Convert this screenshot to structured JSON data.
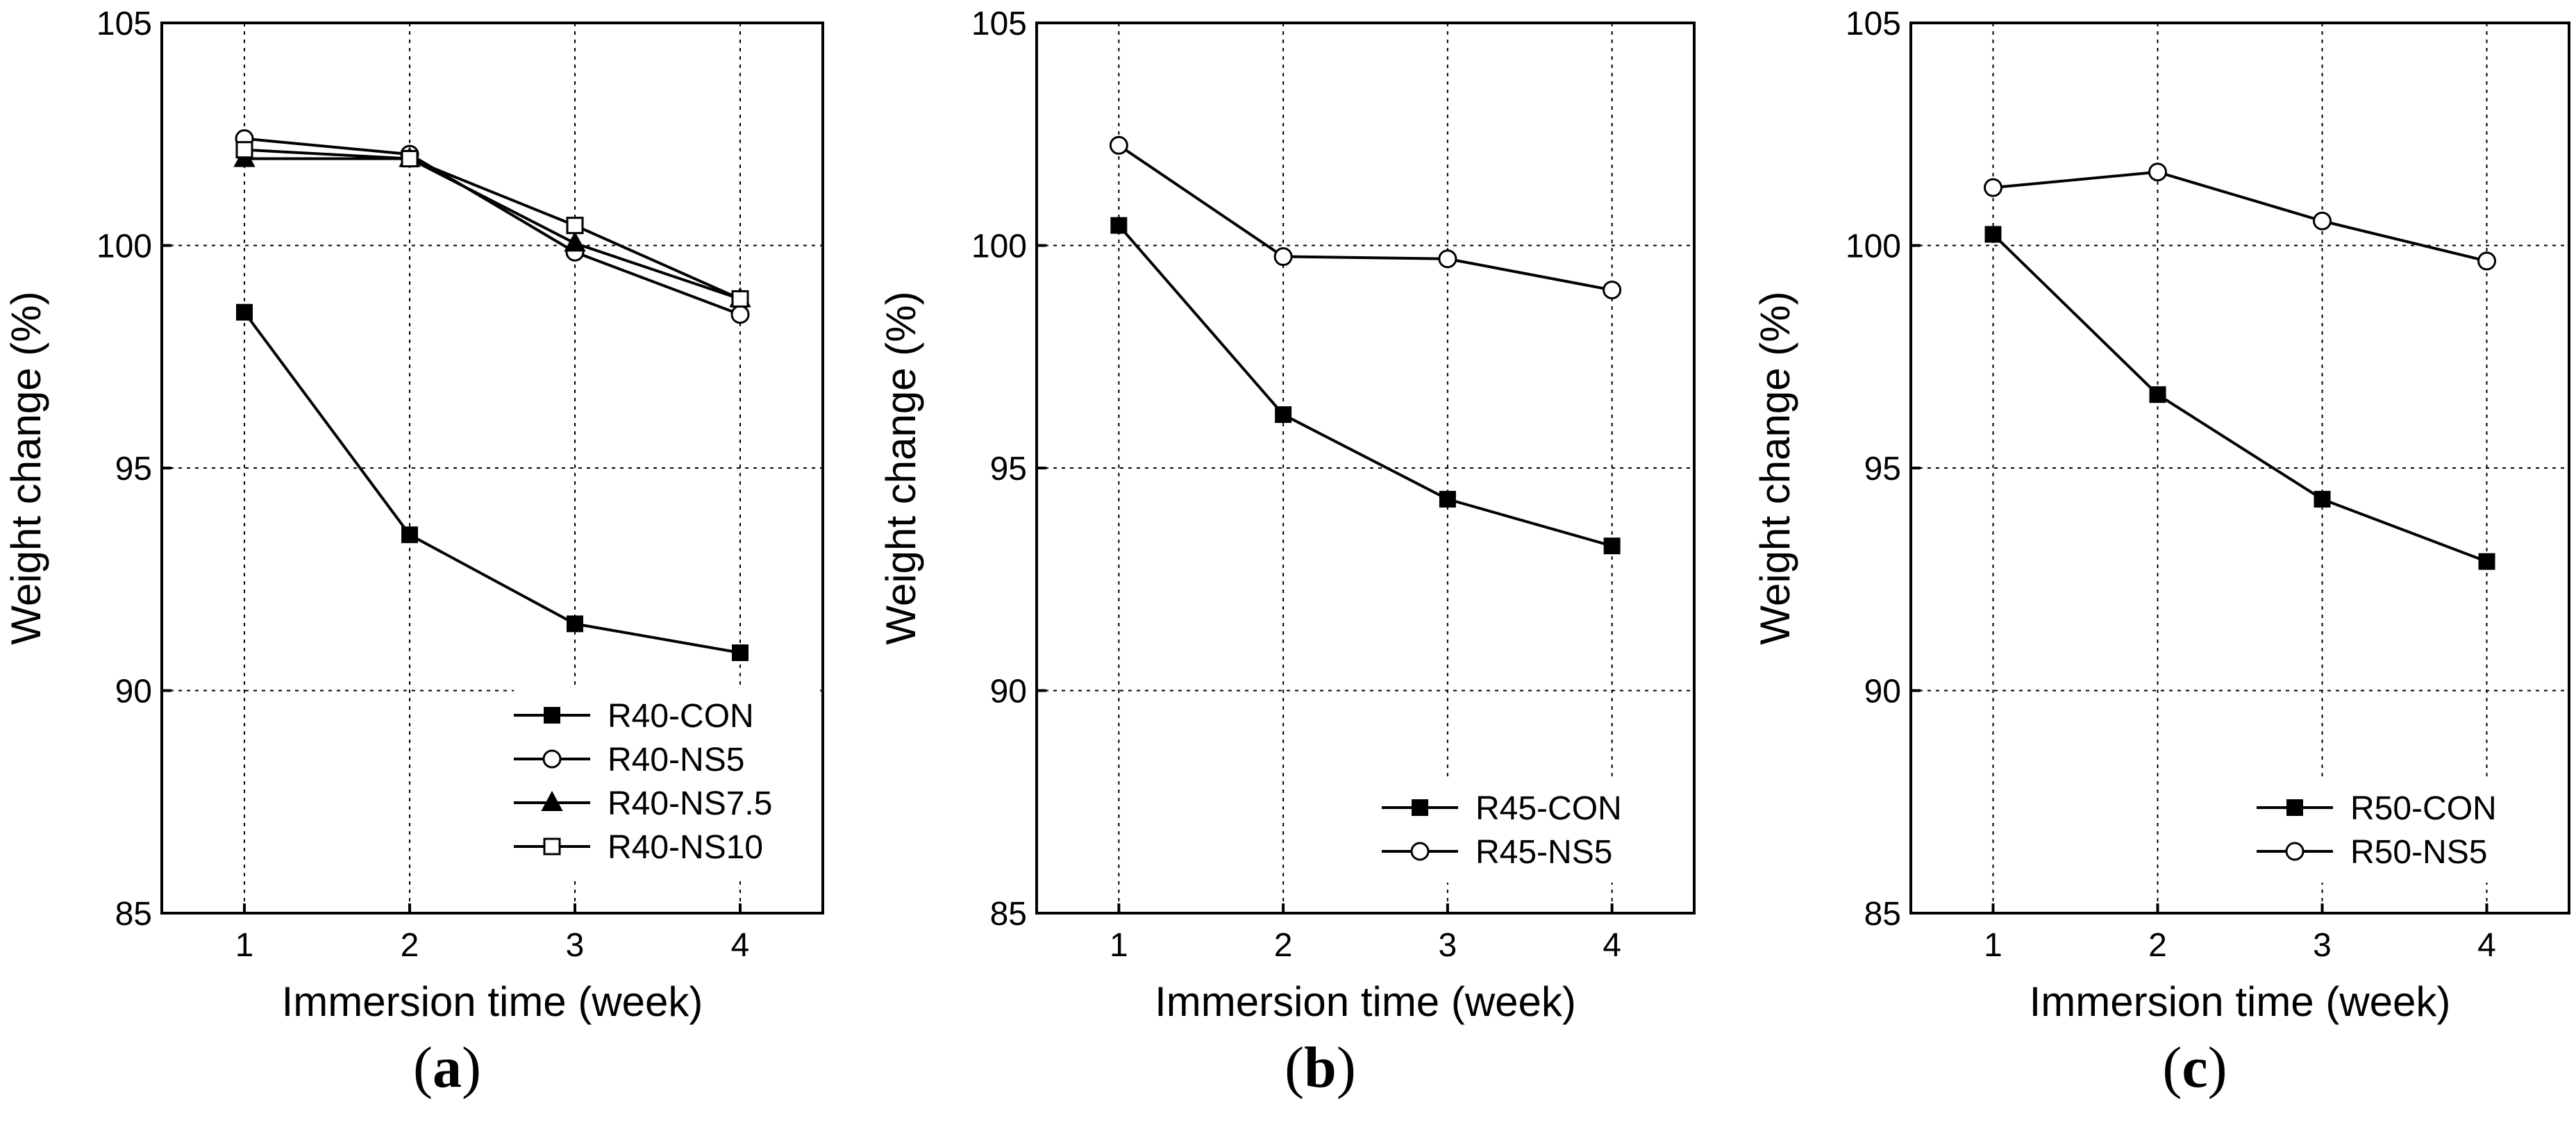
{
  "chart_data": [
    {
      "type": "line",
      "panel_label": "a",
      "title": "",
      "xlabel": "Immersion time (week)",
      "ylabel": "Weight change (%)",
      "x": [
        1,
        2,
        3,
        4
      ],
      "x_ticks": [
        "1",
        "2",
        "3",
        "4"
      ],
      "y_ticks": [
        "85",
        "90",
        "95",
        "100",
        "105"
      ],
      "xlim": [
        0.5,
        4.5
      ],
      "ylim": [
        85,
        105
      ],
      "grid": true,
      "legend_position": "bottom-right",
      "series": [
        {
          "name": "R40-CON",
          "marker": "square-filled",
          "values": [
            98.5,
            93.5,
            91.5,
            90.85
          ]
        },
        {
          "name": "R40-NS5",
          "marker": "circle-open",
          "values": [
            102.4,
            102.05,
            99.85,
            98.45
          ]
        },
        {
          "name": "R40-NS7.5",
          "marker": "triangle-filled",
          "values": [
            101.95,
            101.95,
            100.05,
            98.8
          ]
        },
        {
          "name": "R40-NS10",
          "marker": "square-open",
          "values": [
            102.15,
            101.95,
            100.45,
            98.8
          ]
        }
      ]
    },
    {
      "type": "line",
      "panel_label": "b",
      "title": "",
      "xlabel": "Immersion time (week)",
      "ylabel": "Weight change (%)",
      "x": [
        1,
        2,
        3,
        4
      ],
      "x_ticks": [
        "1",
        "2",
        "3",
        "4"
      ],
      "y_ticks": [
        "85",
        "90",
        "95",
        "100",
        "105"
      ],
      "xlim": [
        0.5,
        4.5
      ],
      "ylim": [
        85,
        105
      ],
      "grid": true,
      "legend_position": "bottom-right",
      "series": [
        {
          "name": "R45-CON",
          "marker": "square-filled",
          "values": [
            100.45,
            96.2,
            94.3,
            93.25
          ]
        },
        {
          "name": "R45-NS5",
          "marker": "circle-open",
          "values": [
            102.25,
            99.75,
            99.7,
            99.0
          ]
        }
      ]
    },
    {
      "type": "line",
      "panel_label": "c",
      "title": "",
      "xlabel": "Immersion time (week)",
      "ylabel": "Weight change (%)",
      "x": [
        1,
        2,
        3,
        4
      ],
      "x_ticks": [
        "1",
        "2",
        "3",
        "4"
      ],
      "y_ticks": [
        "85",
        "90",
        "95",
        "100",
        "105"
      ],
      "xlim": [
        0.5,
        4.5
      ],
      "ylim": [
        85,
        105
      ],
      "grid": true,
      "legend_position": "bottom-right",
      "series": [
        {
          "name": "R50-CON",
          "marker": "square-filled",
          "values": [
            100.25,
            96.65,
            94.3,
            92.9
          ]
        },
        {
          "name": "R50-NS5",
          "marker": "circle-open",
          "values": [
            101.3,
            101.65,
            100.55,
            99.65
          ]
        }
      ]
    }
  ]
}
